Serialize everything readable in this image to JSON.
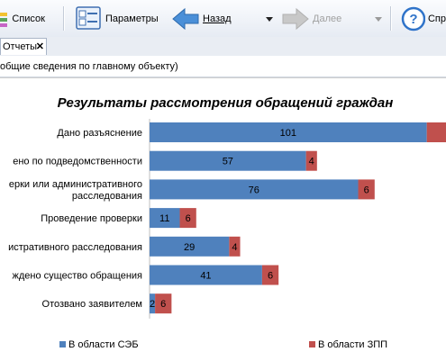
{
  "toolbar": {
    "list_label": "Список",
    "params_label": "Параметры",
    "back_label": "Назад",
    "forward_label": "Далее",
    "help_label": "Спр"
  },
  "tab": {
    "label": "Отчеты",
    "close": "✕"
  },
  "breadcrumb": {
    "text": "общие сведения по главному объекту)"
  },
  "colors": {
    "series_seb": "#4f81bd",
    "series_zpp": "#c0504d"
  },
  "chart_data": {
    "type": "bar",
    "orientation": "horizontal",
    "stacked": true,
    "title": "Результаты рассмотрения  обращений граждан",
    "categories": [
      [
        "Дано разъяснение"
      ],
      [
        "ено по подведомственности"
      ],
      [
        "ерки или административного",
        "расследования"
      ],
      [
        "Проведение проверки"
      ],
      [
        "истративного расследования"
      ],
      [
        "ждено существо  обращения"
      ],
      [
        "Отозвано заявителем"
      ]
    ],
    "series": [
      {
        "name": "В области СЭБ",
        "values": [
          101,
          57,
          76,
          11,
          29,
          41,
          2
        ]
      },
      {
        "name": "В области ЗПП",
        "values": [
          null,
          4,
          6,
          6,
          4,
          6,
          6
        ]
      }
    ],
    "xlim": [
      0,
      108
    ],
    "legend": "bottom"
  }
}
